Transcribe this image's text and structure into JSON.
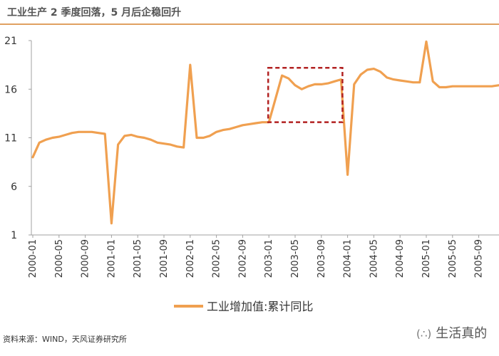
{
  "header": {
    "title": "工业生产 2 季度回落，5 月后企稳回升"
  },
  "footer": {
    "source": "资料来源：WIND，天风证券研究所"
  },
  "watermark": {
    "text": "生活真的"
  },
  "colors": {
    "line": "#F0A050",
    "highlight_box": "#B22222",
    "axis": "#A0A0A0",
    "title_rule": "#E0A060"
  },
  "chart_data": {
    "type": "line",
    "title": "",
    "xlabel": "",
    "ylabel": "",
    "ylim": [
      1,
      21
    ],
    "yticks": [
      1,
      6,
      11,
      16,
      21
    ],
    "grid": false,
    "legend_position": "bottom",
    "xtick_labels": [
      "2000-01",
      "2000-05",
      "2000-09",
      "2001-01",
      "2001-05",
      "2001-09",
      "2002-01",
      "2002-05",
      "2002-09",
      "2003-01",
      "2003-05",
      "2003-09",
      "2004-01",
      "2004-05",
      "2004-09",
      "2005-01",
      "2005-05",
      "2005-09"
    ],
    "x": [
      "2000-01",
      "2000-02",
      "2000-03",
      "2000-04",
      "2000-05",
      "2000-06",
      "2000-07",
      "2000-08",
      "2000-09",
      "2000-10",
      "2000-11",
      "2000-12",
      "2001-01",
      "2001-02",
      "2001-03",
      "2001-04",
      "2001-05",
      "2001-06",
      "2001-07",
      "2001-08",
      "2001-09",
      "2001-10",
      "2001-11",
      "2001-12",
      "2002-01",
      "2002-02",
      "2002-03",
      "2002-04",
      "2002-05",
      "2002-06",
      "2002-07",
      "2002-08",
      "2002-09",
      "2002-10",
      "2002-11",
      "2002-12",
      "2003-01",
      "2003-02",
      "2003-03",
      "2003-04",
      "2003-05",
      "2003-06",
      "2003-07",
      "2003-08",
      "2003-09",
      "2003-10",
      "2003-11",
      "2003-12",
      "2004-01",
      "2004-02",
      "2004-03",
      "2004-04",
      "2004-05",
      "2004-06",
      "2004-07",
      "2004-08",
      "2004-09",
      "2004-10",
      "2004-11",
      "2004-12",
      "2005-01",
      "2005-02",
      "2005-03",
      "2005-04",
      "2005-05",
      "2005-06",
      "2005-07",
      "2005-08",
      "2005-09",
      "2005-10",
      "2005-11",
      "2005-12"
    ],
    "series": [
      {
        "name": "工业增加值:累计同比",
        "values": [
          9.0,
          10.5,
          10.8,
          11.0,
          11.1,
          11.3,
          11.5,
          11.6,
          11.6,
          11.6,
          11.5,
          11.4,
          2.2,
          10.3,
          11.2,
          11.3,
          11.1,
          11.0,
          10.8,
          10.5,
          10.4,
          10.3,
          10.1,
          10.0,
          18.5,
          11.0,
          11.0,
          11.2,
          11.6,
          11.8,
          11.9,
          12.1,
          12.3,
          12.4,
          12.5,
          12.6,
          12.6,
          15.0,
          17.4,
          17.1,
          16.4,
          16.0,
          16.3,
          16.5,
          16.5,
          16.6,
          16.8,
          17.0,
          7.2,
          16.5,
          17.5,
          18.0,
          18.1,
          17.8,
          17.2,
          17.0,
          16.9,
          16.8,
          16.7,
          16.7,
          20.9,
          16.8,
          16.2,
          16.2,
          16.3,
          16.3,
          16.3,
          16.3,
          16.3,
          16.3,
          16.3,
          16.4
        ]
      }
    ],
    "highlight": {
      "x_start": "2003-01",
      "x_end": "2003-12",
      "y_start": 12.6,
      "y_end": 18.2
    }
  }
}
